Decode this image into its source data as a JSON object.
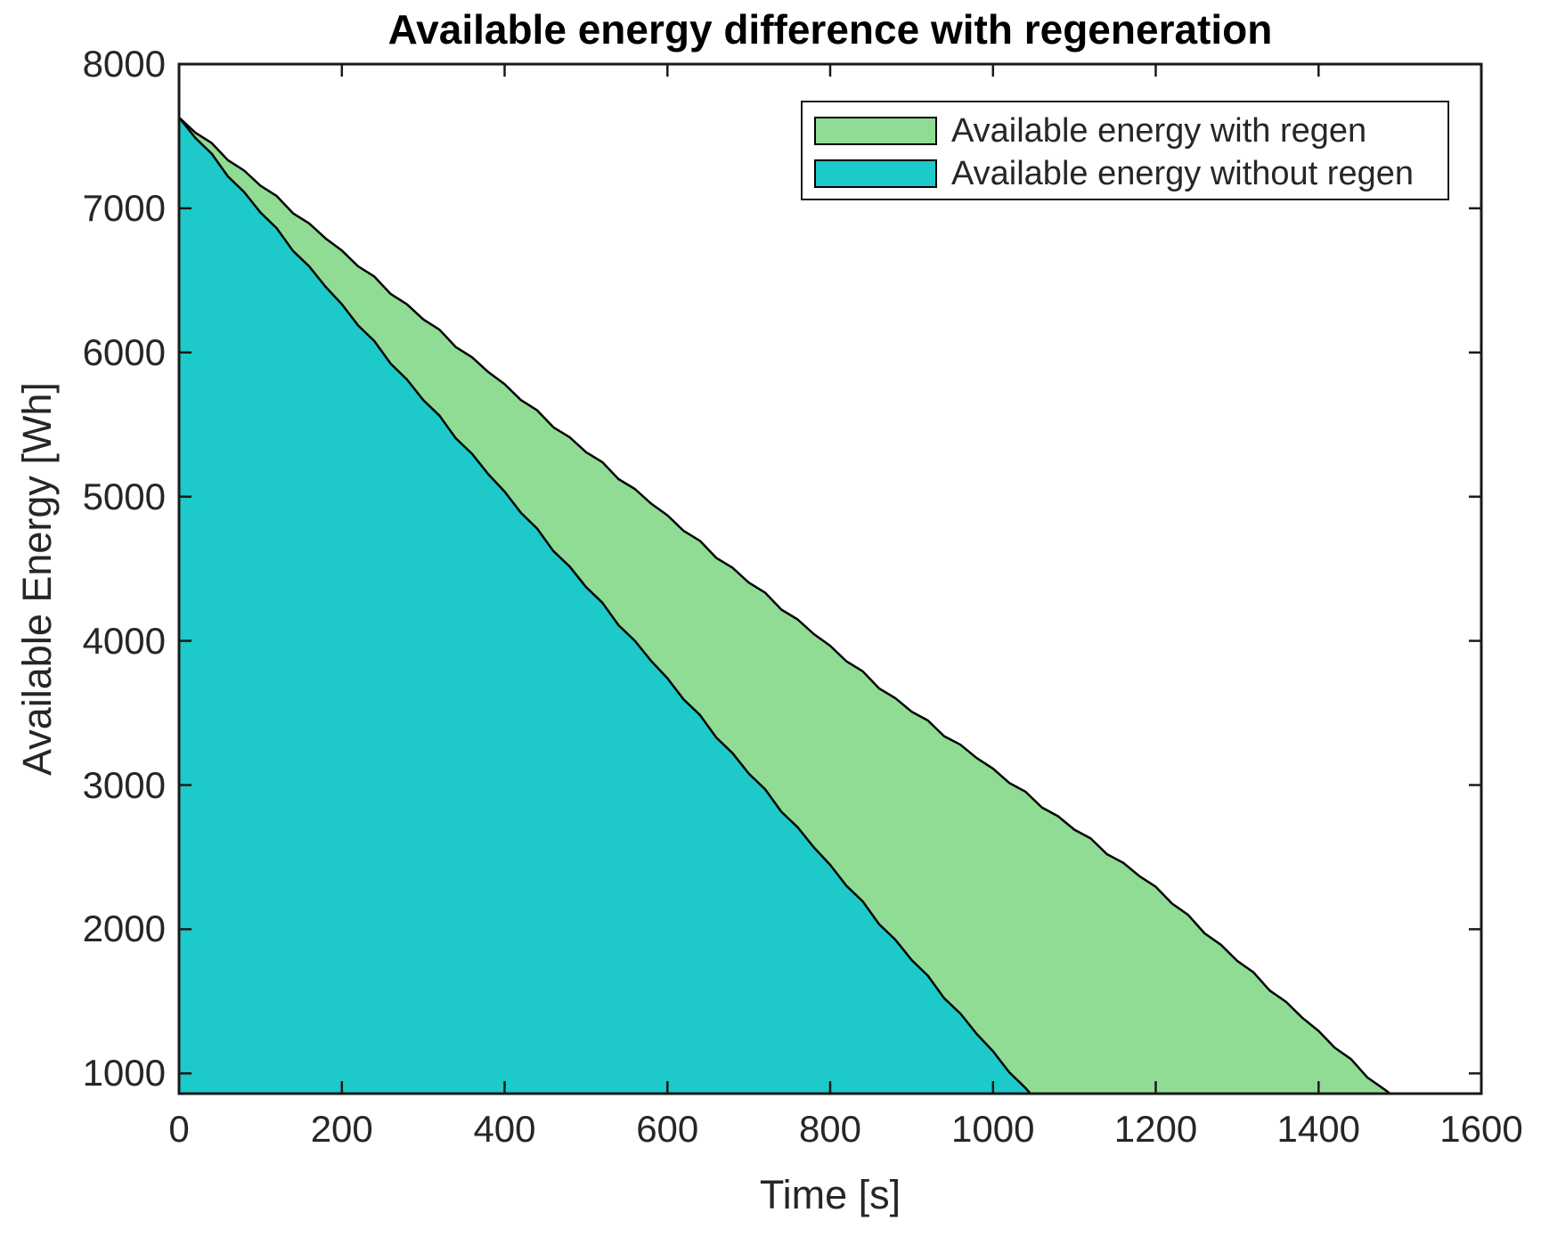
{
  "figure": {
    "background": "#ffffff",
    "title_color": "#000000",
    "text_color": "#262626",
    "axis_color": "#1a1a1a"
  },
  "chart_data": {
    "type": "area",
    "title": "Available energy difference with regeneration",
    "xlabel": "Time [s]",
    "ylabel": "Available Energy [Wh]",
    "xlim": [
      0,
      1600
    ],
    "ylim": [
      860,
      8000
    ],
    "xticks": [
      0,
      200,
      400,
      600,
      800,
      1000,
      1200,
      1400,
      1600
    ],
    "yticks": [
      1000,
      2000,
      3000,
      4000,
      5000,
      6000,
      7000,
      8000
    ],
    "grid": false,
    "legend_position": "top-right",
    "series": [
      {
        "name": "Available energy with regen",
        "color": "#90DC94",
        "edge_color": "#000000",
        "x": [
          0,
          20,
          40,
          60,
          80,
          100,
          120,
          140,
          160,
          180,
          200,
          220,
          240,
          260,
          280,
          300,
          320,
          340,
          360,
          380,
          400,
          420,
          440,
          460,
          480,
          500,
          520,
          540,
          560,
          580,
          600,
          620,
          640,
          660,
          680,
          700,
          720,
          740,
          760,
          780,
          800,
          820,
          840,
          860,
          880,
          900,
          920,
          940,
          960,
          980,
          1000,
          1020,
          1040,
          1060,
          1080,
          1100,
          1120,
          1140,
          1160,
          1180,
          1200,
          1220,
          1240,
          1260,
          1280,
          1300,
          1320,
          1340,
          1360,
          1380,
          1400,
          1420,
          1440,
          1460,
          1480,
          1488
        ],
        "y": [
          7630,
          7525,
          7453,
          7334,
          7262,
          7157,
          7085,
          6966,
          6895,
          6791,
          6707,
          6598,
          6526,
          6406,
          6334,
          6230,
          6158,
          6038,
          5967,
          5864,
          5780,
          5670,
          5599,
          5481,
          5412,
          5309,
          5240,
          5122,
          5054,
          4952,
          4871,
          4763,
          4694,
          4576,
          4507,
          4404,
          4335,
          4217,
          4149,
          4047,
          3966,
          3858,
          3789,
          3671,
          3603,
          3509,
          3448,
          3339,
          3280,
          3187,
          3114,
          3015,
          2954,
          2845,
          2784,
          2691,
          2630,
          2521,
          2461,
          2368,
          2295,
          2178,
          2099,
          1972,
          1893,
          1781,
          1702,
          1575,
          1497,
          1386,
          1295,
          1178,
          1099,
          972,
          893,
          860
        ]
      },
      {
        "name": "Available energy without regen",
        "color": "#1DC9C9",
        "edge_color": "#000000",
        "x": [
          0,
          20,
          40,
          60,
          80,
          100,
          120,
          140,
          160,
          180,
          200,
          220,
          240,
          260,
          280,
          300,
          320,
          340,
          360,
          380,
          400,
          420,
          440,
          460,
          480,
          500,
          520,
          540,
          560,
          580,
          600,
          620,
          640,
          660,
          680,
          700,
          720,
          740,
          760,
          780,
          800,
          820,
          840,
          860,
          880,
          900,
          920,
          940,
          960,
          980,
          1000,
          1020,
          1040,
          1046
        ],
        "y": [
          7630,
          7488,
          7379,
          7222,
          7113,
          6971,
          6862,
          6705,
          6597,
          6456,
          6335,
          6188,
          6079,
          5922,
          5813,
          5671,
          5562,
          5405,
          5297,
          5156,
          5035,
          4888,
          4779,
          4623,
          4515,
          4373,
          4265,
          4109,
          4001,
          3861,
          3741,
          3594,
          3486,
          3330,
          3221,
          3080,
          2972,
          2815,
          2708,
          2568,
          2447,
          2301,
          2193,
          2036,
          1928,
          1787,
          1678,
          1522,
          1415,
          1274,
          1154,
          1008,
          899,
          860
        ]
      }
    ]
  }
}
